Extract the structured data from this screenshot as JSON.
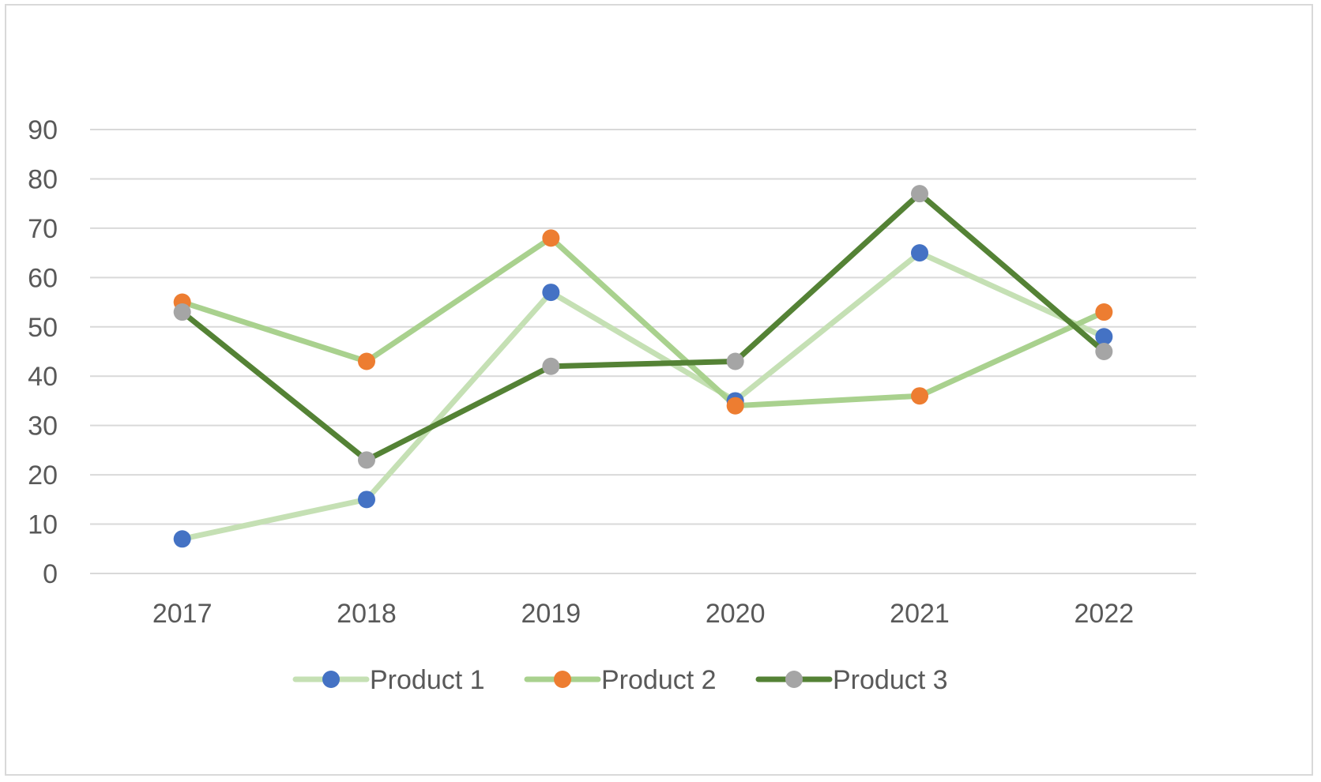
{
  "chart_data": {
    "type": "line",
    "title": "",
    "xlabel": "",
    "ylabel": "",
    "categories": [
      "2017",
      "2018",
      "2019",
      "2020",
      "2021",
      "2022"
    ],
    "ylim": [
      0,
      90
    ],
    "ytick_step": 10,
    "grid": true,
    "legend_position": "bottom",
    "series": [
      {
        "name": "Product 1",
        "values": [
          7,
          15,
          57,
          35,
          65,
          48
        ],
        "line_color": "#c5e0b4",
        "marker_color": "#4472c4"
      },
      {
        "name": "Product 2",
        "values": [
          55,
          43,
          68,
          34,
          36,
          53
        ],
        "line_color": "#a9d18e",
        "marker_color": "#ed7d31"
      },
      {
        "name": "Product 3",
        "values": [
          53,
          23,
          42,
          43,
          77,
          45
        ],
        "line_color": "#548235",
        "marker_color": "#a5a5a5"
      }
    ]
  }
}
